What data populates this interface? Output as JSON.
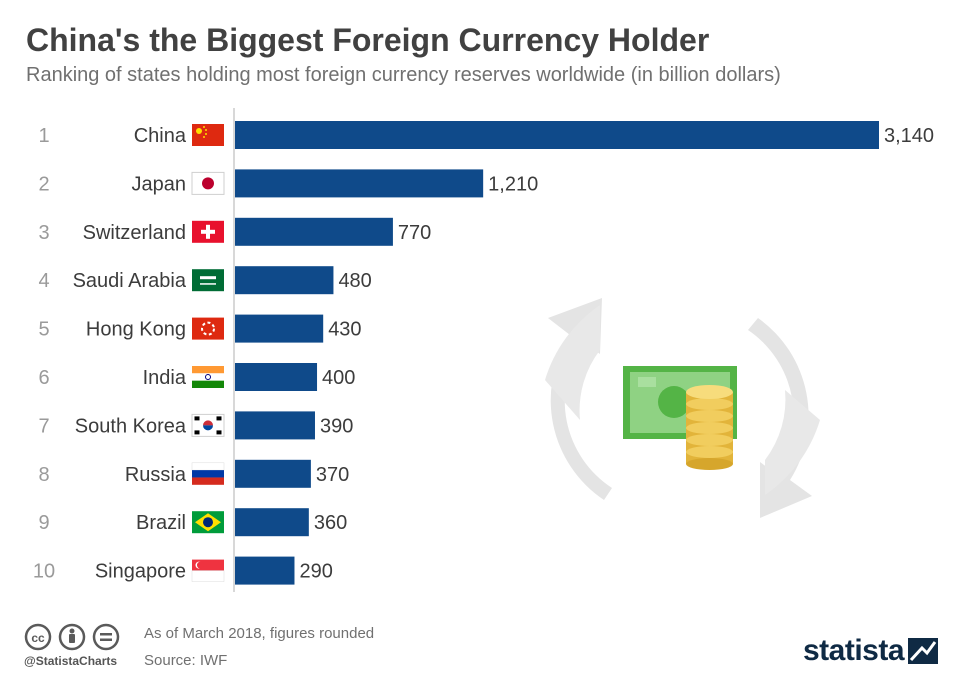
{
  "title": "China's the Biggest Foreign Currency Holder",
  "subtitle": "Ranking of states holding most foreign currency reserves worldwide (in billion dollars)",
  "colors": {
    "bar": "#0f4a8a",
    "axis": "#cccccc",
    "title": "#414141",
    "brand": "#0f2a44"
  },
  "chart_data": {
    "type": "bar",
    "orientation": "horizontal",
    "ranks": [
      "1",
      "2",
      "3",
      "4",
      "5",
      "6",
      "7",
      "8",
      "9",
      "10"
    ],
    "categories": [
      "China",
      "Japan",
      "Switzerland",
      "Saudi Arabia",
      "Hong Kong",
      "India",
      "South Korea",
      "Russia",
      "Brazil",
      "Singapore"
    ],
    "values": [
      3140,
      1210,
      770,
      480,
      430,
      400,
      390,
      370,
      360,
      290
    ],
    "value_labels": [
      "3,140",
      "1,210",
      "770",
      "480",
      "430",
      "400",
      "390",
      "370",
      "360",
      "290"
    ],
    "flags": [
      "china-flag",
      "japan-flag",
      "switzerland-flag",
      "saudi-arabia-flag",
      "hong-kong-flag",
      "india-flag",
      "south-korea-flag",
      "russia-flag",
      "brazil-flag",
      "singapore-flag"
    ],
    "xlim": [
      0,
      3140
    ],
    "grid": false,
    "legend": "none"
  },
  "illustration": {
    "icons": [
      "cycle-arrows-icon",
      "banknote-icon",
      "coin-stack-icon"
    ]
  },
  "footer": {
    "note": "As of March  2018, figures rounded",
    "source": "Source: IWF",
    "handle": "@StatistaCharts",
    "license_icons": [
      "cc-icon",
      "by-icon",
      "nd-icon"
    ],
    "brand": "statista"
  }
}
